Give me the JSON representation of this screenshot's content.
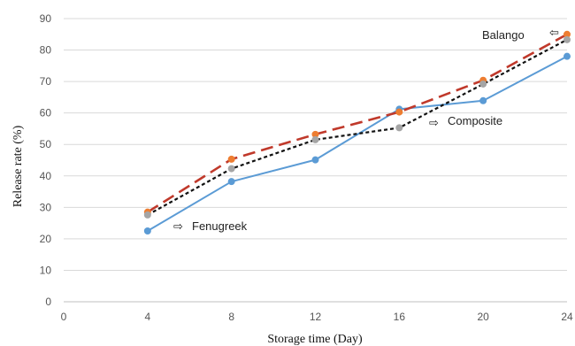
{
  "chart_data": {
    "type": "line",
    "title": "",
    "xlabel": "Storage time (Day)",
    "ylabel": "Release rate (%)",
    "xlim": [
      0,
      24
    ],
    "ylim": [
      0,
      90
    ],
    "x_ticks": [
      0,
      4,
      8,
      12,
      16,
      20,
      24
    ],
    "y_ticks": [
      0,
      10,
      20,
      30,
      40,
      50,
      60,
      70,
      80,
      90
    ],
    "grid": "horizontal",
    "x": [
      4,
      8,
      12,
      16,
      20,
      24
    ],
    "series": [
      {
        "key": "fenugreek",
        "values": [
          22.5,
          38.2,
          45.1,
          61.2,
          63.9,
          78.0
        ],
        "color": "#5b9bd5",
        "line": "solid"
      },
      {
        "key": "balango",
        "values": [
          28.5,
          45.3,
          53.2,
          60.3,
          70.4,
          85.0
        ],
        "color": "#c0392b",
        "marker_color": "#ed7d31",
        "line": "long-dash"
      },
      {
        "key": "composite",
        "values": [
          27.6,
          42.3,
          51.5,
          55.3,
          69.2,
          83.3
        ],
        "color": "#111111",
        "marker_color": "#a5a5a5",
        "line": "short-dash"
      }
    ],
    "annotations": [
      {
        "text": "Fenugreek",
        "arrow": "⇨"
      },
      {
        "text": "Balango",
        "arrow": "⇦"
      },
      {
        "text": "Composite",
        "arrow": "⇨"
      }
    ]
  }
}
